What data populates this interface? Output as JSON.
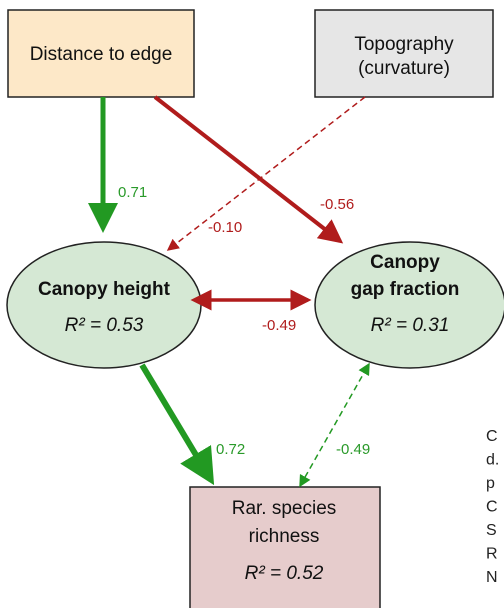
{
  "nodes": [
    {
      "label": [
        "Distance to edge"
      ]
    },
    {
      "label": [
        "Topography",
        "(curvature)"
      ]
    },
    {
      "label": [
        "Canopy height"
      ],
      "r2": "R² = 0.53"
    },
    {
      "label": [
        "Canopy",
        "gap fraction"
      ],
      "r2": "R² = 0.31"
    },
    {
      "label": [
        "Rar. species",
        "richness"
      ],
      "r2": "R² = 0.52"
    }
  ],
  "edges": [
    {
      "from": "Distance to edge",
      "to": "Canopy height",
      "label": "0.71"
    },
    {
      "from": "Distance to edge",
      "to": "Canopy gap fraction",
      "label": "-0.56"
    },
    {
      "from": "Topography (curvature)",
      "to": "Canopy height",
      "label": "-0.10"
    },
    {
      "from": "Canopy height",
      "to": "Canopy gap fraction",
      "label": "-0.49"
    },
    {
      "from": "Canopy height",
      "to": "Rar. species richness",
      "label": "0.72"
    },
    {
      "from": "Canopy gap fraction",
      "to": "Rar. species richness",
      "label": "-0.49"
    }
  ],
  "side_text": [
    "C",
    "d.",
    "p",
    "C",
    "S",
    "R",
    "N"
  ]
}
